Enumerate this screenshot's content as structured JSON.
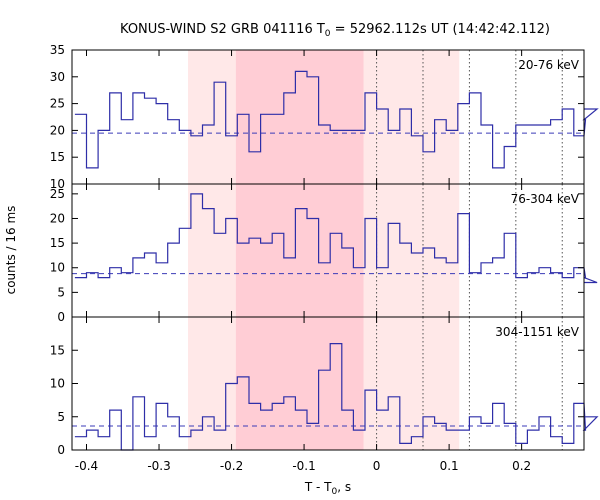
{
  "chart_data": {
    "type": "line",
    "title_main": "KONUS-WIND S2 GRB 041116 T",
    "title_sub": "0",
    "title_rest": " = 52962.112s UT (14:42:42.112)",
    "ylabel": "counts / 16 ms",
    "xlabel_main": "T - T",
    "xlabel_sub": "0",
    "xlabel_rest": ", s",
    "xlim": [
      -0.42,
      0.286
    ],
    "x_ticks": [
      -0.4,
      -0.3,
      -0.2,
      -0.1,
      0,
      0.1,
      0.2
    ],
    "x_tick_labels": [
      "-0.4",
      "-0.3",
      "-0.2",
      "-0.1",
      "0",
      "0.1",
      "0.2"
    ],
    "bin_start": -0.416,
    "bin_width": 0.016,
    "shaded_light": [
      -0.26,
      0.114
    ],
    "shaded_dark": [
      -0.194,
      -0.018
    ],
    "dotted_lines": [
      0,
      0.064,
      0.128,
      0.192,
      0.256
    ],
    "panels": [
      {
        "label": "20-76 keV",
        "ylim": [
          10,
          35
        ],
        "y_ticks": [
          10,
          15,
          20,
          25,
          30,
          35
        ],
        "y_tick_labels": [
          "10",
          "15",
          "20",
          "25",
          "30",
          "35"
        ],
        "background": 19.5,
        "values": [
          23,
          13,
          20,
          27,
          22,
          27,
          26,
          25,
          22,
          20,
          19,
          21,
          29,
          19,
          23,
          16,
          23,
          23,
          27,
          31,
          30,
          21,
          20,
          20,
          20,
          27,
          24,
          20,
          24,
          19,
          16,
          22,
          20,
          25,
          27,
          21,
          13,
          17,
          21,
          21,
          21,
          22,
          24,
          19,
          22,
          24
        ]
      },
      {
        "label": "76-304 keV",
        "ylim": [
          0,
          27
        ],
        "y_ticks": [
          0,
          5,
          10,
          15,
          20,
          25
        ],
        "y_tick_labels": [
          "0",
          "5",
          "10",
          "15",
          "20",
          "25"
        ],
        "background": 8.8,
        "values": [
          8,
          9,
          8,
          10,
          9,
          12,
          13,
          11,
          15,
          18,
          25,
          22,
          17,
          20,
          15,
          16,
          15,
          17,
          12,
          22,
          20,
          11,
          17,
          14,
          10,
          20,
          10,
          19,
          15,
          13,
          14,
          12,
          11,
          21,
          9,
          11,
          12,
          17,
          8,
          9,
          10,
          9,
          8,
          10,
          8,
          7
        ]
      },
      {
        "label": "304-1151 keV",
        "ylim": [
          0,
          20
        ],
        "y_ticks": [
          0,
          5,
          10,
          15
        ],
        "y_tick_labels": [
          "0",
          "5",
          "10",
          "15"
        ],
        "background": 3.6,
        "values": [
          2,
          3,
          2,
          6,
          0,
          8,
          2,
          7,
          5,
          2,
          3,
          5,
          3,
          10,
          11,
          7,
          6,
          7,
          8,
          6,
          4,
          12,
          16,
          6,
          3,
          9,
          6,
          8,
          1,
          2,
          5,
          4,
          3,
          3,
          5,
          4,
          7,
          4,
          1,
          3,
          5,
          2,
          1,
          7,
          3,
          5
        ]
      }
    ]
  }
}
